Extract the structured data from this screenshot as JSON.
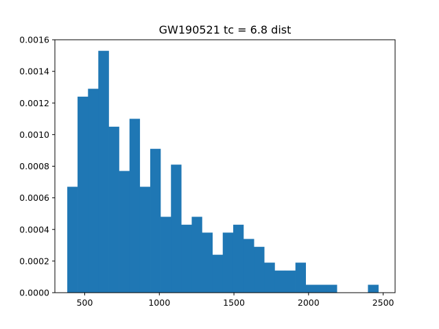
{
  "chart_data": {
    "type": "bar",
    "title": "GW190521 tc = 6.8 dist",
    "xlabel": "",
    "ylabel": "",
    "xlim": [
      300,
      2580
    ],
    "ylim": [
      0,
      0.0016
    ],
    "x_ticks": [
      500,
      1000,
      1500,
      2000,
      2500
    ],
    "y_ticks": [
      0.0,
      0.0002,
      0.0004,
      0.0006,
      0.0008,
      0.001,
      0.0012,
      0.0014,
      0.0016
    ],
    "x_tick_labels": [
      "500",
      "1000",
      "1500",
      "2000",
      "2500"
    ],
    "y_tick_labels": [
      "0.0000",
      "0.0002",
      "0.0004",
      "0.0006",
      "0.0008",
      "0.0010",
      "0.0012",
      "0.0014",
      "0.0016"
    ],
    "bin_edges": [
      383,
      452,
      522,
      591,
      661,
      730,
      800,
      869,
      939,
      1008,
      1078,
      1147,
      1217,
      1286,
      1356,
      1425,
      1495,
      1564,
      1634,
      1703,
      1773,
      1842,
      1912,
      1981,
      2051,
      2120,
      2190,
      2259,
      2329,
      2398,
      2468
    ],
    "values": [
      0.00067,
      0.00124,
      0.00129,
      0.00153,
      0.00105,
      0.00077,
      0.0011,
      0.00067,
      0.00091,
      0.00048,
      0.00081,
      0.00043,
      0.00048,
      0.00038,
      0.00024,
      0.00038,
      0.00043,
      0.00034,
      0.00029,
      0.00019,
      0.00014,
      0.00014,
      0.00019,
      5e-05,
      5e-05,
      5e-05,
      0.0,
      0.0,
      0.0,
      5e-05
    ],
    "bar_color": "#1f77b4",
    "grid": false
  }
}
